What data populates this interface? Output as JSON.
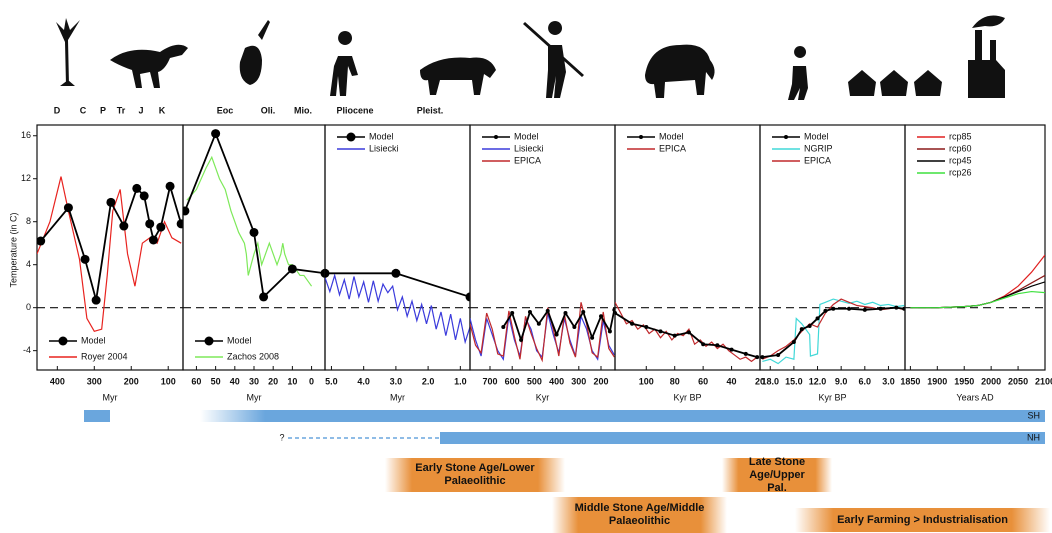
{
  "period_labels": [
    "D",
    "C",
    "P",
    "Tr",
    "J",
    "K",
    "Eoc",
    "Oli.",
    "Mio.",
    "Pliocene",
    "Pleist."
  ],
  "timeline": {
    "sh_label": "SH",
    "nh_label": "NH",
    "unknown_label": "?",
    "eras": [
      "Early Stone Age/Lower Palaeolithic",
      "Late Stone Age/Upper Pal.",
      "Middle Stone Age/Middle Palaeolithic",
      "Early Farming > Industrialisation"
    ]
  },
  "chart_data": [
    {
      "type": "line",
      "y_label": "Temperature (in C)",
      "x_label": "Myr",
      "xlim": [
        455,
        60
      ],
      "xticks": [
        400,
        300,
        200,
        100
      ],
      "ylim": [
        -5.8,
        17
      ],
      "yticks": [
        -4,
        0,
        4,
        8,
        12,
        16
      ],
      "hline": 0,
      "legend": "lower left",
      "series": [
        {
          "name": "Model",
          "color": "#000000",
          "marker": "circle",
          "x": [
            445,
            370,
            325,
            295,
            255,
            220,
            185,
            165,
            150,
            140,
            120,
            95,
            65
          ],
          "values": [
            6.2,
            9.3,
            4.5,
            0.7,
            9.8,
            7.6,
            11.1,
            10.4,
            7.8,
            6.3,
            7.5,
            11.3,
            7.8
          ]
        },
        {
          "name": "Royer 2004",
          "color": "#e8231f",
          "x": [
            455,
            420,
            390,
            370,
            340,
            320,
            300,
            280,
            265,
            250,
            230,
            210,
            190,
            170,
            150,
            130,
            110,
            90,
            65
          ],
          "values": [
            5,
            8,
            12.2,
            9,
            4.5,
            -1,
            -2.2,
            -2,
            3,
            9,
            11,
            5,
            2,
            6,
            6.5,
            6,
            8,
            6.5,
            6
          ]
        }
      ]
    },
    {
      "type": "line",
      "x_label": "Myr",
      "xlim": [
        67,
        -7
      ],
      "xticks": [
        60,
        50,
        40,
        30,
        20,
        10,
        0
      ],
      "ylim": [
        -5.8,
        17
      ],
      "hline": 0,
      "legend": "lower left",
      "series": [
        {
          "name": "Model",
          "color": "#000000",
          "marker": "circle",
          "x": [
            66,
            50,
            30,
            25,
            10,
            -7
          ],
          "values": [
            9,
            16.2,
            7,
            1,
            3.6,
            3.2
          ]
        },
        {
          "name": "Zachos 2008",
          "color": "#7ee95a",
          "x": [
            65,
            60,
            55,
            52,
            50,
            48,
            45,
            42,
            40,
            38,
            35,
            34,
            33,
            30,
            28,
            26,
            24,
            22,
            20,
            18,
            16,
            15,
            14,
            12,
            10,
            8,
            6,
            4,
            2,
            0
          ],
          "values": [
            10,
            11,
            13,
            14,
            13,
            12,
            11,
            9,
            8,
            7,
            6,
            5,
            3,
            5,
            6,
            4,
            5,
            6,
            5,
            4,
            5,
            6,
            5,
            4,
            4,
            3.5,
            3,
            3,
            2.5,
            2
          ]
        }
      ]
    },
    {
      "type": "line",
      "x_label": "Myr",
      "xlim": [
        5.2,
        0.7
      ],
      "xticks": [
        {
          "value": 5,
          "label": "5.0"
        },
        {
          "value": 4,
          "label": "4.0"
        },
        {
          "value": 3,
          "label": "3.0"
        },
        {
          "value": 2,
          "label": "2.0"
        },
        {
          "value": 1,
          "label": "1.0"
        }
      ],
      "ylim": [
        -5.8,
        17
      ],
      "hline": 0,
      "legend": "upper left",
      "series": [
        {
          "name": "Model",
          "color": "#000000",
          "marker": "circle",
          "x": [
            5.2,
            3,
            0.7
          ],
          "values": [
            3.2,
            3.2,
            1
          ]
        },
        {
          "name": "Lisiecki",
          "color": "#3b3bdc",
          "x": [
            5.2,
            5.05,
            4.9,
            4.75,
            4.6,
            4.45,
            4.3,
            4.15,
            4.0,
            3.85,
            3.7,
            3.55,
            3.4,
            3.25,
            3.1,
            2.95,
            2.8,
            2.65,
            2.5,
            2.35,
            2.2,
            2.05,
            1.9,
            1.75,
            1.6,
            1.45,
            1.3,
            1.15,
            1.0,
            0.85,
            0.7
          ],
          "values": [
            2.8,
            1.5,
            3.0,
            1.2,
            2.6,
            0.8,
            2.9,
            1.0,
            2.4,
            0.5,
            2.5,
            0.6,
            2.2,
            1.4,
            2.0,
            -0.2,
            1.0,
            -0.8,
            0.6,
            -1.2,
            0.3,
            -1.5,
            0.2,
            -2.0,
            -0.4,
            -2.6,
            -0.6,
            -3.0,
            -1.0,
            -3.2,
            -1.8
          ]
        }
      ]
    },
    {
      "type": "line",
      "x_label": "Kyr",
      "xlim": [
        790,
        137
      ],
      "xticks": [
        700,
        600,
        500,
        400,
        300,
        200
      ],
      "ylim": [
        -5.8,
        17
      ],
      "hline": 0,
      "legend": "upper left",
      "series": [
        {
          "name": "Model",
          "color": "#000000",
          "marker": "dot",
          "x": [
            640,
            600,
            560,
            520,
            480,
            440,
            400,
            360,
            320,
            280,
            240,
            200,
            160,
            140
          ],
          "values": [
            -1.8,
            -0.5,
            -3,
            -0.4,
            -1.5,
            -0.3,
            -2.5,
            -0.5,
            -1.8,
            -0.4,
            -2.8,
            -0.8,
            -2.2,
            -0.2
          ]
        },
        {
          "name": "Lisiecki",
          "color": "#3b3bdc",
          "x": [
            790,
            765,
            740,
            715,
            690,
            665,
            640,
            615,
            590,
            565,
            540,
            515,
            490,
            465,
            440,
            415,
            390,
            365,
            340,
            315,
            290,
            265,
            240,
            215,
            190,
            165,
            140
          ],
          "values": [
            -1,
            -3,
            -4.5,
            -1,
            -2.5,
            -4,
            -4.8,
            -0.8,
            -3,
            -4.5,
            -1,
            -2,
            -4,
            -4.6,
            -0.5,
            -2.5,
            -4.2,
            -1,
            -3,
            -4.5,
            -0.8,
            -2,
            -4,
            -4.8,
            -1.2,
            -3.5,
            -4.4
          ]
        },
        {
          "name": "EPICA",
          "color": "#c0282b",
          "x": [
            790,
            765,
            740,
            715,
            690,
            665,
            640,
            615,
            590,
            565,
            540,
            515,
            490,
            465,
            440,
            415,
            390,
            365,
            340,
            315,
            290,
            265,
            240,
            215,
            190,
            165,
            140
          ],
          "values": [
            -1.5,
            -3.5,
            -4.2,
            -0.5,
            -2,
            -4.3,
            -4.5,
            -0.3,
            -2.7,
            -4.8,
            -0.8,
            -2.4,
            -3.8,
            -4.9,
            0,
            -2,
            -4.5,
            -0.6,
            -3.3,
            -4.6,
            0.5,
            -1.5,
            -4.2,
            -4.6,
            -0.4,
            -3.8,
            -4.6
          ]
        }
      ]
    },
    {
      "type": "line",
      "x_label": "Kyr BP",
      "xlim": [
        122,
        20
      ],
      "xticks": [
        100,
        80,
        60,
        40,
        20
      ],
      "ylim": [
        -5.8,
        17
      ],
      "hline": 0,
      "legend": "upper left",
      "series": [
        {
          "name": "Model",
          "color": "#000000",
          "marker": "dot",
          "x": [
            122,
            110,
            100,
            90,
            80,
            70,
            60,
            50,
            40,
            30,
            22
          ],
          "values": [
            -0.5,
            -1.5,
            -1.8,
            -2.2,
            -2.6,
            -2.3,
            -3.4,
            -3.5,
            -3.9,
            -4.3,
            -4.6
          ]
        },
        {
          "name": "EPICA",
          "color": "#c0282b",
          "x": [
            122,
            118,
            114,
            110,
            106,
            102,
            98,
            94,
            90,
            86,
            82,
            78,
            74,
            70,
            66,
            62,
            58,
            54,
            50,
            46,
            42,
            38,
            34,
            30,
            26,
            22
          ],
          "values": [
            0.5,
            -0.5,
            -1.5,
            -1.2,
            -2,
            -1.6,
            -2.4,
            -2,
            -2.8,
            -2.2,
            -3,
            -2.4,
            -2.6,
            -2,
            -3.4,
            -3,
            -3.6,
            -3.2,
            -3.8,
            -3.4,
            -4,
            -4.4,
            -4.8,
            -4.6,
            -5,
            -4.6
          ]
        }
      ]
    },
    {
      "type": "line",
      "x_label": "Kyr BP",
      "xlim": [
        19.3,
        0.9
      ],
      "xticks": [
        {
          "value": 18,
          "label": "18.0"
        },
        {
          "value": 15,
          "label": "15.0"
        },
        {
          "value": 12,
          "label": "12.0"
        },
        {
          "value": 9,
          "label": "9.0"
        },
        {
          "value": 6,
          "label": "6.0"
        },
        {
          "value": 3,
          "label": "3.0"
        }
      ],
      "ylim": [
        -5.8,
        17
      ],
      "hline": 0,
      "legend": "upper left",
      "series": [
        {
          "name": "Model",
          "color": "#000000",
          "marker": "dot",
          "x": [
            19,
            17,
            15,
            14,
            13,
            12,
            11,
            10,
            8,
            6,
            4,
            2,
            1
          ],
          "values": [
            -4.6,
            -4.4,
            -3.2,
            -2,
            -1.7,
            -1,
            -0.3,
            -0.1,
            -0.1,
            -0.2,
            -0.1,
            0,
            -0.1
          ]
        },
        {
          "name": "NGRIP",
          "color": "#40d8d8",
          "x": [
            19,
            18,
            17,
            16,
            15,
            14.7,
            14,
            13,
            12.9,
            12,
            11.7,
            11,
            10,
            9,
            8,
            7,
            6,
            5,
            4,
            3,
            2,
            1
          ],
          "values": [
            -5,
            -4.8,
            -5.2,
            -4.6,
            -4.8,
            -1,
            -1.5,
            -2.5,
            -4.5,
            -4.3,
            0.3,
            0.5,
            0.8,
            0.6,
            0.4,
            0.6,
            0.3,
            0.5,
            0.2,
            0.3,
            0.1,
            0.2
          ]
        },
        {
          "name": "EPICA",
          "color": "#c0282b",
          "x": [
            19,
            18,
            17,
            16,
            15,
            14,
            13,
            12,
            11,
            10,
            9,
            8,
            7,
            6,
            5,
            4,
            3,
            2,
            1
          ],
          "values": [
            -4.8,
            -4.5,
            -4,
            -3.6,
            -3,
            -2.2,
            -1.5,
            -1.8,
            -0.5,
            0.3,
            0.8,
            0.5,
            0.2,
            0.1,
            0,
            -0.2,
            -0.1,
            0,
            -0.2
          ]
        }
      ]
    },
    {
      "type": "line",
      "x_label": "Years AD",
      "xlim": [
        1840,
        2100
      ],
      "xticks": [
        1850,
        1900,
        1950,
        2000,
        2050,
        2100
      ],
      "ylim": [
        -5.8,
        17
      ],
      "hline": 0,
      "legend": "upper left",
      "series": [
        {
          "name": "rcp85",
          "color": "#e02020",
          "x": [
            1850,
            1875,
            1900,
            1925,
            1950,
            1975,
            2000,
            2025,
            2050,
            2075,
            2100
          ],
          "values": [
            0,
            0,
            0,
            0.05,
            0.1,
            0.2,
            0.5,
            1.1,
            2.0,
            3.3,
            4.9
          ]
        },
        {
          "name": "rcp60",
          "color": "#8b1a1a",
          "x": [
            1850,
            1875,
            1900,
            1925,
            1950,
            1975,
            2000,
            2025,
            2050,
            2075,
            2100
          ],
          "values": [
            0,
            0,
            0,
            0.05,
            0.1,
            0.2,
            0.5,
            1.0,
            1.6,
            2.3,
            3.0
          ]
        },
        {
          "name": "rcp45",
          "color": "#000000",
          "x": [
            1850,
            1875,
            1900,
            1925,
            1950,
            1975,
            2000,
            2025,
            2050,
            2075,
            2100
          ],
          "values": [
            0,
            0,
            0,
            0.05,
            0.1,
            0.2,
            0.5,
            1.0,
            1.5,
            2.0,
            2.4
          ]
        },
        {
          "name": "rcp26",
          "color": "#3ee03e",
          "x": [
            1850,
            1875,
            1900,
            1925,
            1950,
            1975,
            2000,
            2025,
            2050,
            2075,
            2100
          ],
          "values": [
            0,
            0,
            0,
            0.05,
            0.1,
            0.2,
            0.5,
            0.9,
            1.3,
            1.5,
            1.4
          ]
        }
      ]
    }
  ]
}
